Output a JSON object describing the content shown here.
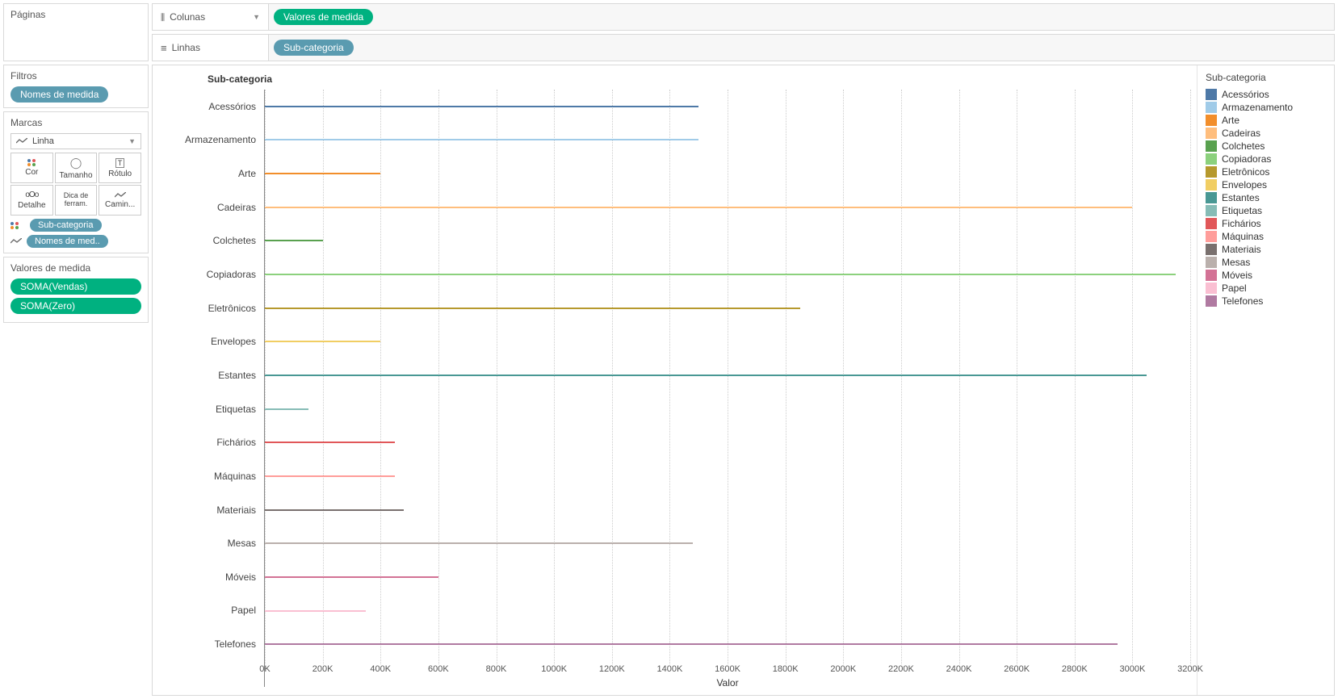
{
  "pages": {
    "title": "Páginas"
  },
  "shelves": {
    "columns_label": "Colunas",
    "rows_label": "Linhas",
    "columns_pill": "Valores de medida",
    "rows_pill": "Sub-categoria"
  },
  "filters": {
    "title": "Filtros",
    "pill": "Nomes de medida"
  },
  "marks": {
    "title": "Marcas",
    "type_selected": "Linha",
    "buttons": {
      "cor": "Cor",
      "tamanho": "Tamanho",
      "rotulo": "Rótulo",
      "detalhe": "Detalhe",
      "dica": "Dica de ferram.",
      "caminho": "Camin..."
    },
    "assign_color": "Sub-categoria",
    "assign_path": "Nomes de med.."
  },
  "measure_values": {
    "title": "Valores de medida",
    "pills": [
      "SOMA(Vendas)",
      "SOMA(Zero)"
    ]
  },
  "chart": {
    "header": "Sub-categoria",
    "x_title": "Valor",
    "x_max": 3200000,
    "x_tick_step": 200000,
    "x_tick_labels": [
      "0K",
      "200K",
      "400K",
      "600K",
      "800K",
      "1000K",
      "1200K",
      "1400K",
      "1600K",
      "1800K",
      "2000K",
      "2200K",
      "2400K",
      "2600K",
      "2800K",
      "3000K",
      "3200K"
    ],
    "line_width": 2,
    "colors": {
      "Acessórios": "#4e79a7",
      "Armazenamento": "#a0cbe8",
      "Arte": "#f28e2b",
      "Cadeiras": "#ffbe7d",
      "Colchetes": "#59a14f",
      "Copiadoras": "#8cd17d",
      "Eletrônicos": "#b6992d",
      "Envelopes": "#f1ce63",
      "Estantes": "#499894",
      "Etiquetas": "#86bcb6",
      "Fichários": "#e15759",
      "Máquinas": "#ff9d9a",
      "Materiais": "#79706e",
      "Mesas": "#bab0ac",
      "Móveis": "#d37295",
      "Papel": "#fabfd2",
      "Telefones": "#b07aa1"
    },
    "series": [
      {
        "label": "Acessórios",
        "value": 1500000
      },
      {
        "label": "Armazenamento",
        "value": 1500000
      },
      {
        "label": "Arte",
        "value": 400000
      },
      {
        "label": "Cadeiras",
        "value": 3000000
      },
      {
        "label": "Colchetes",
        "value": 200000
      },
      {
        "label": "Copiadoras",
        "value": 3150000
      },
      {
        "label": "Eletrônicos",
        "value": 1850000
      },
      {
        "label": "Envelopes",
        "value": 400000
      },
      {
        "label": "Estantes",
        "value": 3050000
      },
      {
        "label": "Etiquetas",
        "value": 150000
      },
      {
        "label": "Fichários",
        "value": 450000
      },
      {
        "label": "Máquinas",
        "value": 450000
      },
      {
        "label": "Materiais",
        "value": 480000
      },
      {
        "label": "Mesas",
        "value": 1480000
      },
      {
        "label": "Móveis",
        "value": 600000
      },
      {
        "label": "Papel",
        "value": 350000
      },
      {
        "label": "Telefones",
        "value": 2950000
      }
    ]
  },
  "legend": {
    "title": "Sub-categoria"
  }
}
